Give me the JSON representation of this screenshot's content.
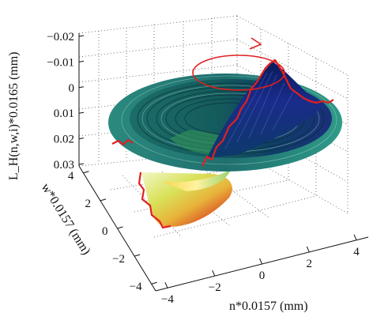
{
  "chart_data": {
    "type": "surface",
    "title": "",
    "xlabel": "n*0.0157 (mm)",
    "ylabel": "w*0.0157 (mm)",
    "zlabel": "L_H(n,w,i)*0.0165 (mm)",
    "x_ticks": [
      -4,
      -2,
      0,
      2,
      4
    ],
    "y_ticks": [
      -4,
      -2,
      0,
      2,
      4
    ],
    "z_ticks": [
      -0.02,
      -0.01,
      0,
      0.01,
      0.02,
      0.03
    ],
    "x_tick_labels": [
      "−4",
      "−2",
      "0",
      "2",
      "4"
    ],
    "y_tick_labels": [
      "−4",
      "−2",
      "0",
      "2",
      "4"
    ],
    "z_tick_labels": [
      "−0.02",
      "−0.01",
      "0",
      "0.01",
      "0.02",
      "0.03"
    ],
    "xlim": [
      -4.5,
      4.5
    ],
    "ylim": [
      -4.5,
      4.5
    ],
    "zlim": [
      -0.02,
      0.03
    ],
    "z_axis_reversed": true,
    "grid": true,
    "colormap": "jet-like (blue to red)",
    "annotation": "red circular arrow indicating rotation",
    "edge_trace_color": "#e02020"
  }
}
